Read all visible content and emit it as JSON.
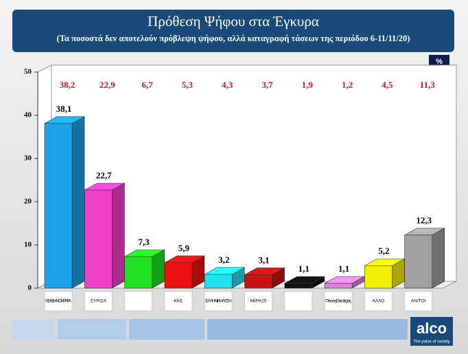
{
  "chart_data": {
    "type": "bar3d",
    "title": "Πρόθεση Ψήφου στα Έγκυρα",
    "subtitle": "(Τα ποσοστά δεν αποτελούν πρόβλεψη ψήφου, αλλά καταγραφή τάσεων της περιόδου 6-11/11/20)",
    "unit_label": "%",
    "categories": [
      "ΝΕΑ ΔΗΜΟΚΡΑΤΙΑ",
      "ΣΥΡΙΖΑ",
      null,
      "ΚΚΕ",
      "ΕΛΛΗΝΙΚΗ ΛΥΣΗ",
      "ΜέΡΑ25",
      null,
      "Πλεύση Ελευθερίας",
      "ΑΛΛΟ",
      "ΑΝ/ΤΟΙ"
    ],
    "series": [
      {
        "colors": [
          "#1aa3e8",
          "#f040c8",
          "#22e022",
          "#ee1111",
          "#22e0f0",
          "#cc1111",
          "#111111",
          "#e080e0",
          "#f0f000",
          "#a0a0a0"
        ],
        "values": [
          38.1,
          22.7,
          7.3,
          5.9,
          3.2,
          3.1,
          1.1,
          1.1,
          5.2,
          12.3
        ],
        "value_labels": [
          "38,1",
          "22,7",
          "7,3",
          "5,9",
          "3,2",
          "3,1",
          "1,1",
          "1,1",
          "5,2",
          "12,3"
        ]
      },
      {
        "color": "#e81010",
        "values": [
          38.2,
          22.9,
          6.7,
          5.3,
          4.3,
          3.7,
          1.9,
          1.2,
          4.5,
          11.3
        ],
        "value_labels": [
          "38,2",
          "22,9",
          "6,7",
          "5,3",
          "4,3",
          "3,7",
          "1,9",
          "1,2",
          "4,5",
          "11,3"
        ]
      }
    ],
    "ylim": [
      0,
      50
    ],
    "yticks": [
      0,
      10,
      20,
      30,
      40,
      50
    ],
    "brand": "alco",
    "tagline": "The pulse of society"
  }
}
